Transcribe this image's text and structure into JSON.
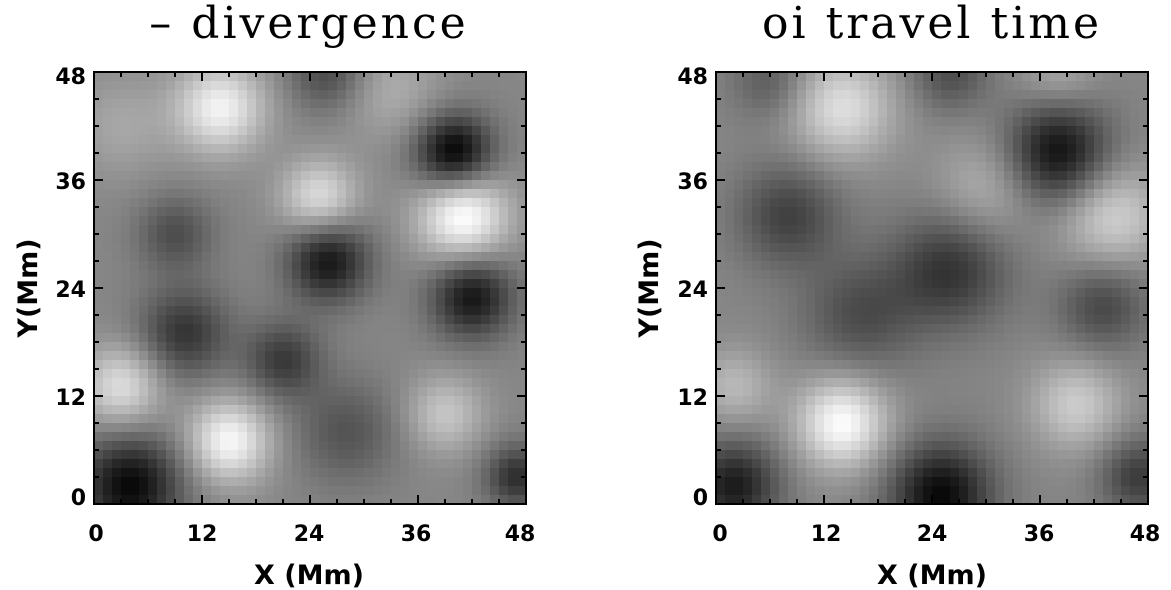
{
  "chart_data": [
    {
      "type": "heatmap",
      "title": "– divergence",
      "xlabel": "X (Mm)",
      "ylabel": "Y(Mm)",
      "xlim": [
        0,
        48
      ],
      "ylim": [
        0,
        48
      ],
      "xticks": [
        "0",
        "12",
        "24",
        "36",
        "48"
      ],
      "yticks": [
        "0",
        "12",
        "24",
        "36",
        "48"
      ],
      "colormap": "grayscale",
      "grid": false,
      "features": [
        {
          "x": 14,
          "y": 44,
          "sigma": 3.5,
          "value": 0.85
        },
        {
          "x": 40,
          "y": 39,
          "sigma": 3.0,
          "value": -1.1
        },
        {
          "x": 41,
          "y": 32,
          "sigma": 3.5,
          "value": 1.0
        },
        {
          "x": 25,
          "y": 34,
          "sigma": 3.0,
          "value": 0.7
        },
        {
          "x": 26,
          "y": 27,
          "sigma": 3.2,
          "value": -0.9
        },
        {
          "x": 9,
          "y": 30,
          "sigma": 3.0,
          "value": -0.45
        },
        {
          "x": 42,
          "y": 23,
          "sigma": 3.2,
          "value": -0.9
        },
        {
          "x": 10,
          "y": 19,
          "sigma": 3.5,
          "value": -0.65
        },
        {
          "x": 21,
          "y": 16,
          "sigma": 3.0,
          "value": -0.6
        },
        {
          "x": 3,
          "y": 13,
          "sigma": 3.2,
          "value": 0.7
        },
        {
          "x": 15,
          "y": 7,
          "sigma": 3.2,
          "value": 0.9
        },
        {
          "x": 28,
          "y": 8,
          "sigma": 4.0,
          "value": -0.4
        },
        {
          "x": 39,
          "y": 10,
          "sigma": 3.0,
          "value": 0.5
        },
        {
          "x": 4,
          "y": 2,
          "sigma": 4.0,
          "value": -1.0
        },
        {
          "x": 47,
          "y": 3,
          "sigma": 2.5,
          "value": -0.7
        },
        {
          "x": 33,
          "y": 46,
          "sigma": 4.0,
          "value": 0.3
        },
        {
          "x": 3,
          "y": 42,
          "sigma": 4.0,
          "value": 0.25
        },
        {
          "x": 26,
          "y": 48,
          "sigma": 3.0,
          "value": -0.5
        }
      ]
    },
    {
      "type": "heatmap",
      "title": "oi travel time",
      "xlabel": "X (Mm)",
      "ylabel": "Y(Mm)",
      "xlim": [
        0,
        48
      ],
      "ylim": [
        0,
        48
      ],
      "xticks": [
        "0",
        "12",
        "24",
        "36",
        "48"
      ],
      "yticks": [
        "0",
        "12",
        "24",
        "36",
        "48"
      ],
      "colormap": "grayscale",
      "grid": false,
      "features": [
        {
          "x": 14,
          "y": 44,
          "sigma": 4.0,
          "value": 0.7
        },
        {
          "x": 38,
          "y": 39,
          "sigma": 4.0,
          "value": -0.95
        },
        {
          "x": 8,
          "y": 32,
          "sigma": 4.0,
          "value": -0.55
        },
        {
          "x": 26,
          "y": 26,
          "sigma": 4.5,
          "value": -0.65
        },
        {
          "x": 16,
          "y": 21,
          "sigma": 4.5,
          "value": -0.45
        },
        {
          "x": 43,
          "y": 22,
          "sigma": 3.5,
          "value": -0.5
        },
        {
          "x": 14,
          "y": 9,
          "sigma": 3.5,
          "value": 0.95
        },
        {
          "x": 2,
          "y": 13,
          "sigma": 3.0,
          "value": 0.4
        },
        {
          "x": 40,
          "y": 11,
          "sigma": 3.5,
          "value": 0.55
        },
        {
          "x": 25,
          "y": 1,
          "sigma": 4.0,
          "value": -1.0
        },
        {
          "x": 2,
          "y": 2,
          "sigma": 3.5,
          "value": -0.85
        },
        {
          "x": 47,
          "y": 3,
          "sigma": 3.0,
          "value": -0.6
        },
        {
          "x": 44,
          "y": 32,
          "sigma": 4.0,
          "value": 0.6
        },
        {
          "x": 30,
          "y": 35,
          "sigma": 4.0,
          "value": 0.35
        },
        {
          "x": 38,
          "y": 48,
          "sigma": 3.0,
          "value": 0.3
        },
        {
          "x": 26,
          "y": 48,
          "sigma": 3.0,
          "value": -0.45
        },
        {
          "x": 6,
          "y": 47,
          "sigma": 3.0,
          "value": -0.35
        }
      ]
    }
  ]
}
